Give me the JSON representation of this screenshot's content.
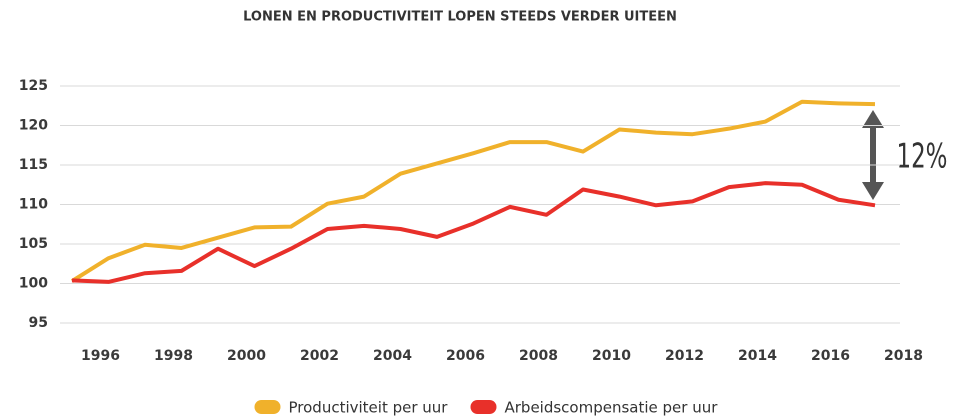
{
  "chart_data": {
    "type": "line",
    "title": "LONEN EN PRODUCTIVITEIT LOPEN STEEDS VERDER UITEEN",
    "annotation": "12%",
    "x": [
      1995,
      1996,
      1997,
      1998,
      1999,
      2000,
      2001,
      2002,
      2003,
      2004,
      2005,
      2006,
      2007,
      2008,
      2009,
      2010,
      2011,
      2012,
      2013,
      2014,
      2015,
      2016,
      2017
    ],
    "xlim": [
      1995,
      2017
    ],
    "xticks": [
      1996,
      1998,
      2000,
      2002,
      2004,
      2006,
      2008,
      2010,
      2012,
      2014,
      2016,
      2018
    ],
    "ylim": [
      95,
      125
    ],
    "yticks": [
      95,
      100,
      105,
      110,
      115,
      120,
      125
    ],
    "grid": true,
    "legend": "bottom",
    "series": [
      {
        "name": "Productiviteit per uur",
        "color": "#f0b12b",
        "values": [
          100.3,
          103.2,
          104.9,
          104.5,
          105.8,
          107.1,
          107.2,
          110.1,
          111.0,
          113.9,
          115.2,
          116.5,
          117.9,
          117.9,
          116.7,
          119.5,
          119.1,
          118.9,
          119.6,
          120.5,
          123.0,
          122.8,
          122.7
        ]
      },
      {
        "name": "Arbeidscompensatie per uur",
        "color": "#e8302a",
        "values": [
          100.4,
          100.2,
          101.3,
          101.6,
          104.4,
          102.2,
          104.4,
          106.9,
          107.3,
          106.9,
          105.9,
          107.6,
          109.7,
          108.7,
          111.9,
          111.0,
          109.9,
          110.4,
          112.2,
          112.7,
          112.5,
          110.6,
          109.9
        ]
      }
    ]
  }
}
